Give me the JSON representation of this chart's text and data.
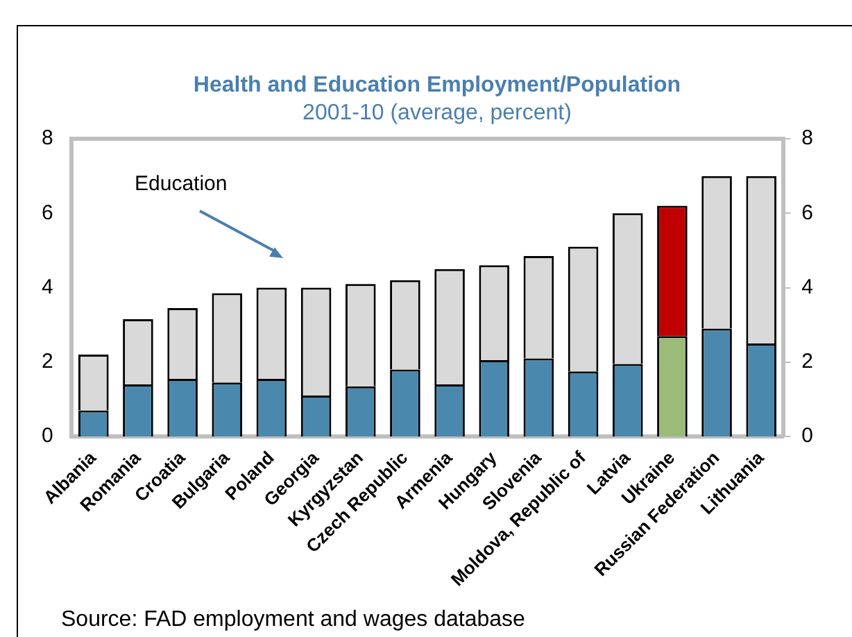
{
  "chart_data": {
    "type": "bar",
    "stacked": true,
    "title": "Health and Education Employment/Population",
    "subtitle": "2001-10 (average, percent)",
    "categories": [
      "Albania",
      "Romania",
      "Croatia",
      "Bulgaria",
      "Poland",
      "Georgia",
      "Kyrgyzstan",
      "Czech Republic",
      "Armenia",
      "Hungary",
      "Slovenia",
      "Moldova, Republic of",
      "Latvia",
      "Ukraine",
      "Russian Federation",
      "Lithuania"
    ],
    "series": [
      {
        "colors": [
          "#4a89ad",
          "#4a89ad",
          "#4a89ad",
          "#4a89ad",
          "#4a89ad",
          "#4a89ad",
          "#4a89ad",
          "#4a89ad",
          "#4a89ad",
          "#4a89ad",
          "#4a89ad",
          "#4a89ad",
          "#4a89ad",
          "#9bbb78",
          "#4a89ad",
          "#4a89ad"
        ],
        "values": [
          0.7,
          1.4,
          1.55,
          1.45,
          1.55,
          1.1,
          1.35,
          1.8,
          1.4,
          2.05,
          2.1,
          1.75,
          1.95,
          2.7,
          2.9,
          2.5
        ]
      },
      {
        "colors": [
          "#d9d9d9",
          "#d9d9d9",
          "#d9d9d9",
          "#d9d9d9",
          "#d9d9d9",
          "#d9d9d9",
          "#d9d9d9",
          "#d9d9d9",
          "#d9d9d9",
          "#d9d9d9",
          "#d9d9d9",
          "#d9d9d9",
          "#d9d9d9",
          "#c00000",
          "#d9d9d9",
          "#d9d9d9"
        ],
        "values": [
          1.5,
          1.75,
          1.9,
          2.4,
          2.45,
          2.9,
          2.75,
          2.4,
          3.1,
          2.55,
          2.75,
          3.35,
          4.05,
          3.5,
          4.1,
          4.5
        ]
      }
    ],
    "ylim": [
      0,
      8
    ],
    "yticks": [
      0,
      2,
      4,
      6,
      8
    ],
    "y2lim": [
      0,
      8
    ],
    "y2ticks": [
      0,
      2,
      4,
      6,
      8
    ],
    "annotations": [
      "Education",
      "Source: FAD employment and wages database"
    ]
  }
}
